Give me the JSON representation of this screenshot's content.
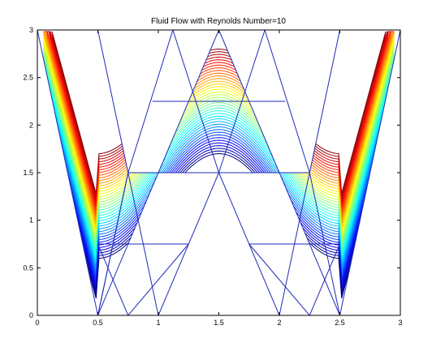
{
  "chart_data": {
    "type": "contour",
    "title": "Fluid Flow with Reynolds Number=10",
    "xlabel": "",
    "ylabel": "",
    "xlim": [
      0,
      3
    ],
    "ylim": [
      0,
      3
    ],
    "x_ticks": [
      0,
      0.5,
      1,
      1.5,
      2,
      2.5,
      3
    ],
    "x_tick_labels": [
      "0",
      "0.5",
      "1",
      "1.5",
      "2",
      "2.5",
      "3"
    ],
    "y_ticks": [
      0,
      0.5,
      1,
      1.5,
      2,
      2.5,
      3
    ],
    "y_tick_labels": [
      "0",
      "0.5",
      "1",
      "1.5",
      "2",
      "2.5",
      "3"
    ],
    "grid": false,
    "colormap": "jet",
    "domain_shape": "W",
    "domain_outline": [
      [
        0,
        3
      ],
      [
        0.5,
        0
      ],
      [
        1,
        1.5
      ],
      [
        1.5,
        3
      ],
      [
        2,
        1.5
      ],
      [
        2.5,
        0
      ],
      [
        3,
        3
      ],
      [
        2.5,
        3
      ],
      [
        2.25,
        1.5
      ],
      [
        1.5,
        1.5
      ],
      [
        0.75,
        1.5
      ],
      [
        0.5,
        3
      ]
    ],
    "mesh_color": "#1f2bb8",
    "mesh_lines": [
      [
        [
          0,
          3
        ],
        [
          0.5,
          0
        ]
      ],
      [
        [
          0.5,
          0
        ],
        [
          1,
          1.5
        ]
      ],
      [
        [
          1,
          1.5
        ],
        [
          1.5,
          3
        ]
      ],
      [
        [
          1.5,
          3
        ],
        [
          2,
          1.5
        ]
      ],
      [
        [
          2,
          1.5
        ],
        [
          2.5,
          0
        ]
      ],
      [
        [
          2.5,
          0
        ],
        [
          3,
          3
        ]
      ],
      [
        [
          0.5,
          3
        ],
        [
          0.75,
          1.5
        ]
      ],
      [
        [
          0.75,
          1.5
        ],
        [
          0.5,
          0
        ]
      ],
      [
        [
          0.75,
          1.5
        ],
        [
          1,
          0
        ]
      ],
      [
        [
          1,
          0
        ],
        [
          1.5,
          1.5
        ]
      ],
      [
        [
          1.5,
          1.5
        ],
        [
          2,
          0
        ]
      ],
      [
        [
          2,
          0
        ],
        [
          2.25,
          1.5
        ]
      ],
      [
        [
          2.25,
          1.5
        ],
        [
          2.5,
          3
        ]
      ],
      [
        [
          2.25,
          1.5
        ],
        [
          2.5,
          0
        ]
      ],
      [
        [
          0,
          3
        ],
        [
          0.5,
          3
        ]
      ],
      [
        [
          2.5,
          3
        ],
        [
          3,
          3
        ]
      ],
      [
        [
          0.5,
          3
        ],
        [
          1.12,
          3
        ]
      ],
      [
        [
          1.12,
          3
        ],
        [
          1.88,
          3
        ]
      ],
      [
        [
          1.88,
          3
        ],
        [
          2.5,
          3
        ]
      ],
      [
        [
          1.12,
          3
        ],
        [
          1.5,
          1.5
        ]
      ],
      [
        [
          1.88,
          3
        ],
        [
          1.5,
          1.5
        ]
      ],
      [
        [
          1.12,
          3
        ],
        [
          0.75,
          1.5
        ]
      ],
      [
        [
          1.88,
          3
        ],
        [
          2.25,
          1.5
        ]
      ],
      [
        [
          0.75,
          1.5
        ],
        [
          2.25,
          1.5
        ]
      ],
      [
        [
          0.5,
          0.75
        ],
        [
          1.25,
          0.75
        ]
      ],
      [
        [
          1.75,
          0.75
        ],
        [
          2.5,
          0.75
        ]
      ],
      [
        [
          0.95,
          2.25
        ],
        [
          2.05,
          2.25
        ]
      ],
      [
        [
          0.5,
          0
        ],
        [
          0.75,
          1.5
        ]
      ],
      [
        [
          0.75,
          0
        ],
        [
          1.25,
          0.75
        ]
      ],
      [
        [
          2.25,
          0
        ],
        [
          1.75,
          0.75
        ]
      ],
      [
        [
          0.5,
          0.75
        ],
        [
          0.75,
          0
        ]
      ],
      [
        [
          2.5,
          0.75
        ],
        [
          2.25,
          0
        ]
      ]
    ],
    "contour_levels": 40
  }
}
